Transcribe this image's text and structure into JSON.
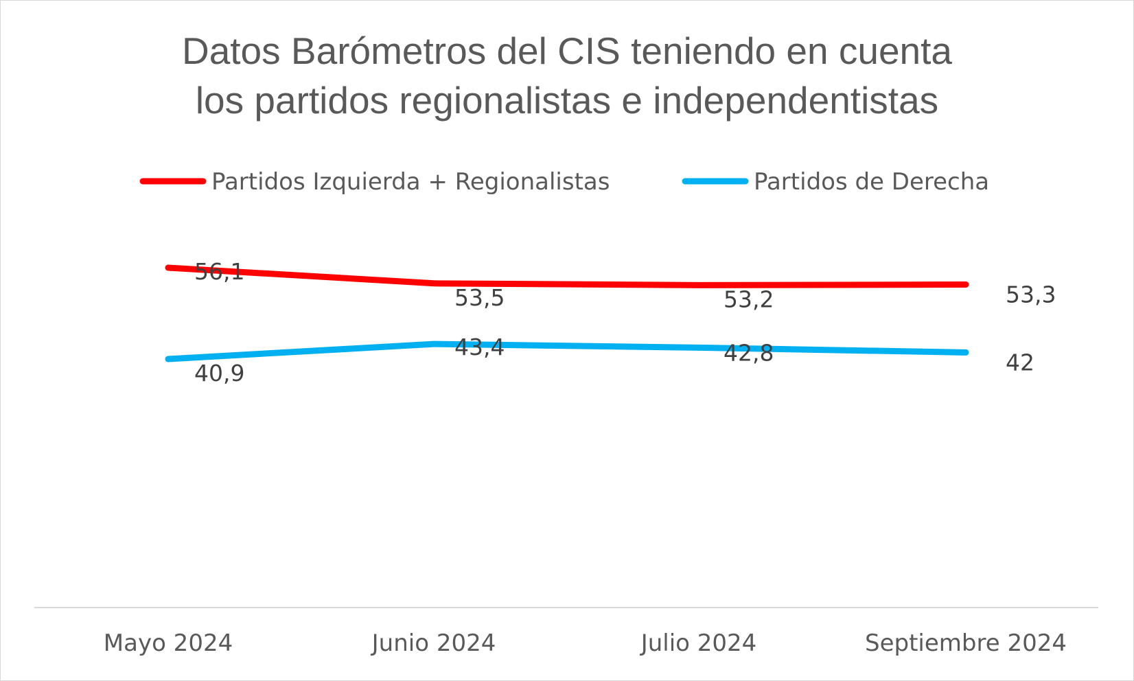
{
  "chart_data": {
    "type": "line",
    "title_lines": [
      "Datos Barómetros del CIS teniendo en cuenta",
      "los partidos regionalistas e independentistas"
    ],
    "categories": [
      "Mayo 2024",
      "Junio 2024",
      "Julio 2024",
      "Septiembre 2024"
    ],
    "series": [
      {
        "name": "Partidos Izquierda + Regionalistas",
        "color": "#ff0000",
        "values": [
          56.1,
          53.5,
          53.2,
          53.3
        ],
        "labels": [
          "56,1",
          "53,5",
          "53,2",
          "53,3"
        ]
      },
      {
        "name": "Partidos de Derecha",
        "color": "#00b0f0",
        "values": [
          40.9,
          43.4,
          42.8,
          42
        ],
        "labels": [
          "40,9",
          "43,4",
          "42,8",
          "42"
        ]
      }
    ],
    "legend_position": "top",
    "grid": false,
    "axis_color": "#d9d9d9",
    "text_color": "#595959"
  }
}
